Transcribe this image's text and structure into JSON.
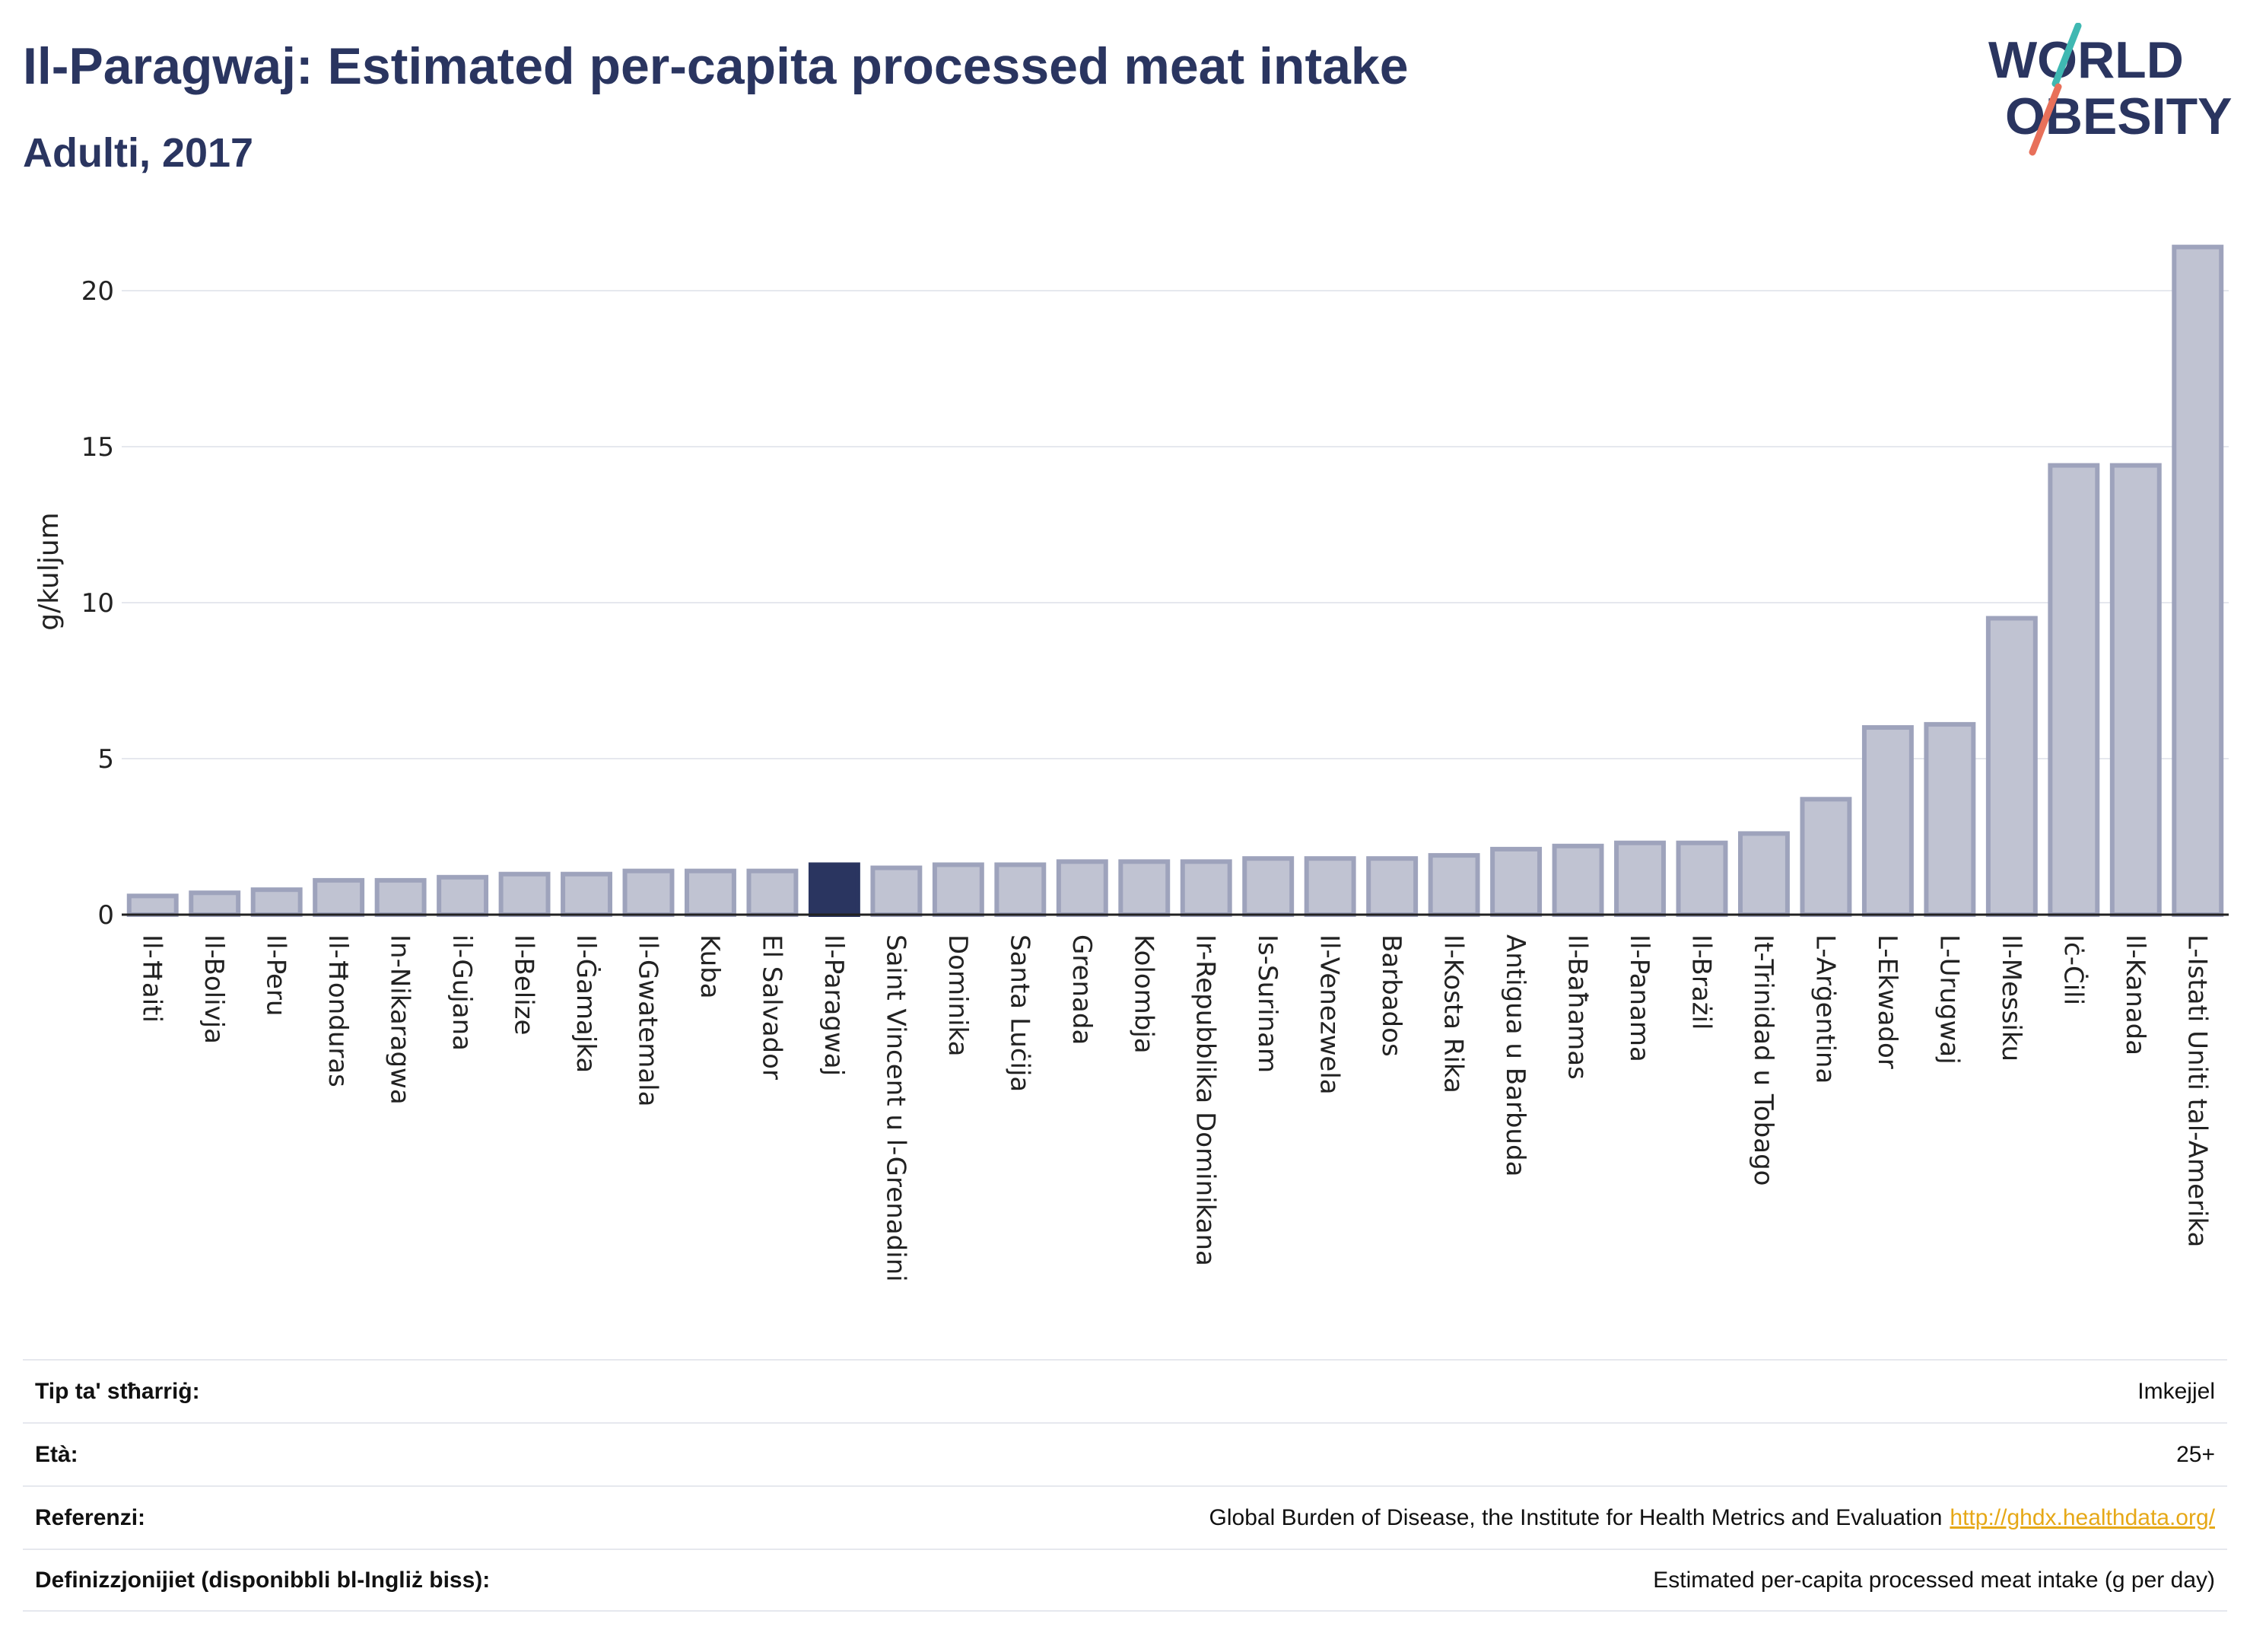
{
  "header": {
    "title": "Il-Paragwaj: Estimated per-capita processed meat intake",
    "subtitle": "Adulti, 2017"
  },
  "logo": {
    "line1": "WORLD",
    "line2": "OBESITY",
    "accent_teal": "#3fb8b2",
    "accent_coral": "#e8705a",
    "text_color": "#2a3560"
  },
  "colors": {
    "bar": "#c0c3d2",
    "bar_stroke": "#9ea3bc",
    "highlight": "#2a3560",
    "grid": "#e6e8ee"
  },
  "chart_data": {
    "type": "bar",
    "ylabel": "g/kuljum",
    "ylim": [
      0,
      22
    ],
    "yticks": [
      0,
      5,
      10,
      15,
      20
    ],
    "grid": true,
    "highlight": "Il-Paragwaj",
    "categories": [
      "Il-Ħaiti",
      "Il-Bolivja",
      "Il-Peru",
      "Il-Ħonduras",
      "In-Nikaragwa",
      "il-Gujana",
      "Il-Belize",
      "Il-Ġamajka",
      "Il-Gwatemala",
      "Kuba",
      "El Salvador",
      "Il-Paragwaj",
      "Saint Vincent u l-Grenadini",
      "Dominika",
      "Santa Luċija",
      "Grenada",
      "Kolombja",
      "Ir-Repubblika Dominikana",
      "Is-Surinam",
      "Il-Venezwela",
      "Barbados",
      "Il-Kosta Rika",
      "Antigua u Barbuda",
      "Il-Baħamas",
      "Il-Panama",
      "Il-Brażil",
      "It-Trinidad u Tobago",
      "L-Arġentina",
      "L-Ekwador",
      "L-Urugwaj",
      "Il-Messiku",
      "Iċ-Ċili",
      "Il-Kanada",
      "L-Istati Uniti tal-Amerika"
    ],
    "values": [
      0.6,
      0.7,
      0.8,
      1.1,
      1.1,
      1.2,
      1.3,
      1.3,
      1.4,
      1.4,
      1.4,
      1.6,
      1.5,
      1.6,
      1.6,
      1.7,
      1.7,
      1.7,
      1.8,
      1.8,
      1.8,
      1.9,
      2.1,
      2.2,
      2.3,
      2.3,
      2.6,
      3.7,
      6.0,
      6.1,
      9.5,
      14.4,
      14.4,
      21.4
    ]
  },
  "info": [
    {
      "label": "Tip ta' stħarriġ:",
      "value": "Imkejjel"
    },
    {
      "label": "Età:",
      "value": "25+"
    },
    {
      "label": "Referenzi:",
      "value": "Global Burden of Disease, the Institute for Health Metrics and Evaluation",
      "link": "http://ghdx.healthdata.org/"
    },
    {
      "label": "Definizzjonijiet (disponibbli bl-Ingliż biss):",
      "value": "Estimated per-capita processed meat intake (g per day)"
    }
  ]
}
